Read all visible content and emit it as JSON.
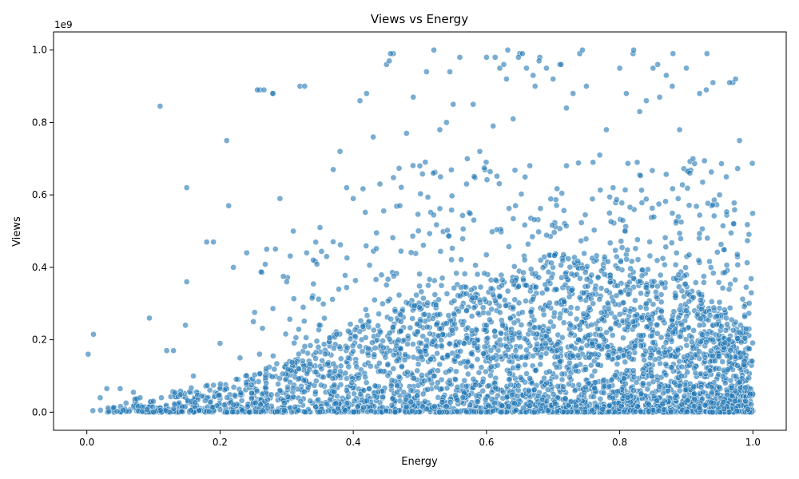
{
  "chart_data": {
    "type": "scatter",
    "title": "Views vs Energy",
    "xlabel": "Energy",
    "ylabel": "Views",
    "y_offset_text": "1e9",
    "xlim": [
      -0.05,
      1.05
    ],
    "ylim": [
      -0.05,
      1.05
    ],
    "x_ticks": [
      0.0,
      0.2,
      0.4,
      0.6,
      0.8,
      1.0
    ],
    "x_tick_labels": [
      "0.0",
      "0.2",
      "0.4",
      "0.6",
      "0.8",
      "1.0"
    ],
    "y_ticks": [
      0.0,
      0.2,
      0.4,
      0.6,
      0.8,
      1.0
    ],
    "y_tick_labels": [
      "0.0",
      "0.2",
      "0.4",
      "0.6",
      "0.8",
      "1.0"
    ],
    "grid": false,
    "marker_color": "#1f77b4",
    "marker_edge_color": "#ffffff",
    "marker_alpha": 0.6,
    "series": [
      {
        "x": [
          0.002,
          0.01,
          0.02,
          0.03,
          0.05,
          0.07,
          0.08,
          0.1,
          0.11,
          0.12,
          0.13,
          0.15,
          0.15,
          0.16,
          0.18,
          0.19,
          0.2,
          0.21,
          0.22,
          0.23,
          0.24,
          0.25,
          0.26,
          0.27,
          0.28,
          0.29,
          0.3,
          0.31,
          0.32,
          0.33,
          0.34,
          0.35,
          0.36,
          0.37,
          0.38,
          0.39,
          0.4,
          0.41,
          0.42,
          0.43,
          0.44,
          0.45,
          0.46,
          0.47,
          0.48,
          0.49,
          0.5,
          0.51,
          0.52,
          0.53,
          0.54,
          0.55,
          0.56,
          0.57,
          0.58,
          0.59,
          0.6,
          0.61,
          0.62,
          0.63,
          0.64,
          0.65,
          0.66,
          0.67,
          0.68,
          0.69,
          0.7,
          0.71,
          0.72,
          0.73,
          0.74,
          0.75,
          0.76,
          0.77,
          0.78,
          0.79,
          0.8,
          0.81,
          0.82,
          0.83,
          0.84,
          0.85,
          0.86,
          0.87,
          0.88,
          0.89,
          0.9,
          0.91,
          0.92,
          0.93,
          0.94,
          0.95,
          0.96,
          0.97,
          0.98,
          0.99,
          1.0,
          0.112,
          0.213,
          0.148,
          0.094,
          0.256,
          0.266,
          0.279,
          0.327,
          0.454,
          0.456,
          0.521,
          0.545,
          0.613,
          0.626,
          0.632,
          0.648,
          0.654,
          0.673,
          0.679,
          0.712,
          0.744,
          0.821,
          0.857,
          0.879,
          0.931,
          0.965,
          0.974,
          0.432,
          0.468,
          0.53,
          0.57,
          0.59,
          0.6,
          0.62,
          0.64,
          0.66,
          0.69,
          0.71,
          0.72,
          0.74,
          0.76,
          0.78,
          0.8,
          0.82,
          0.84,
          0.86,
          0.88,
          0.9,
          0.92,
          0.94,
          0.96,
          0.98,
          0.996
        ],
        "y": [
          0.16,
          0.215,
          0.04,
          0.065,
          0.065,
          0.055,
          0.04,
          0.03,
          0.845,
          0.17,
          0.17,
          0.62,
          0.36,
          0.1,
          0.47,
          0.47,
          0.19,
          0.75,
          0.4,
          0.15,
          0.44,
          0.25,
          0.89,
          0.45,
          0.88,
          0.59,
          0.36,
          0.5,
          0.9,
          0.44,
          0.42,
          0.51,
          0.43,
          0.67,
          0.72,
          0.62,
          0.59,
          0.86,
          0.88,
          0.76,
          0.63,
          0.96,
          0.99,
          0.57,
          0.77,
          0.87,
          0.68,
          0.94,
          0.66,
          0.78,
          0.8,
          0.85,
          0.98,
          0.63,
          0.85,
          0.72,
          0.98,
          0.79,
          0.95,
          0.92,
          0.81,
          0.99,
          0.95,
          0.93,
          0.98,
          0.95,
          0.92,
          0.96,
          0.84,
          0.88,
          0.99,
          0.9,
          0.69,
          0.71,
          0.78,
          0.62,
          0.95,
          0.88,
          0.99,
          0.83,
          0.86,
          0.95,
          0.87,
          0.93,
          0.99,
          0.78,
          0.95,
          0.7,
          0.88,
          0.89,
          0.91,
          0.6,
          0.65,
          0.91,
          0.75,
          0.23,
          0.05,
          0.04,
          0.57,
          0.24,
          0.26,
          0.89,
          0.89,
          0.88,
          0.9,
          0.97,
          0.99,
          1.0,
          0.94,
          0.98,
          0.96,
          1.0,
          0.98,
          0.99,
          0.9,
          0.97,
          0.96,
          1.0,
          1.0,
          0.96,
          0.9,
          0.99,
          0.91,
          0.92,
          0.31,
          0.2,
          0.27,
          0.28,
          0.31,
          0.24,
          0.32,
          0.29,
          0.35,
          0.21,
          0.26,
          0.28,
          0.24,
          0.3,
          0.22,
          0.27,
          0.25,
          0.3,
          0.26,
          0.22,
          0.28,
          0.24,
          0.2,
          0.26,
          0.22,
          0.05
        ]
      }
    ],
    "bulk_density": {
      "x_range": [
        0.0,
        1.0
      ],
      "note_is_not_shown": false,
      "ceiling_by_energy": [
        [
          0.0,
          0.02
        ],
        [
          0.1,
          0.05
        ],
        [
          0.2,
          0.08
        ],
        [
          0.3,
          0.15
        ],
        [
          0.4,
          0.25
        ],
        [
          0.5,
          0.32
        ],
        [
          0.6,
          0.38
        ],
        [
          0.7,
          0.44
        ],
        [
          0.8,
          0.42
        ],
        [
          0.9,
          0.36
        ],
        [
          1.0,
          0.22
        ]
      ]
    }
  }
}
